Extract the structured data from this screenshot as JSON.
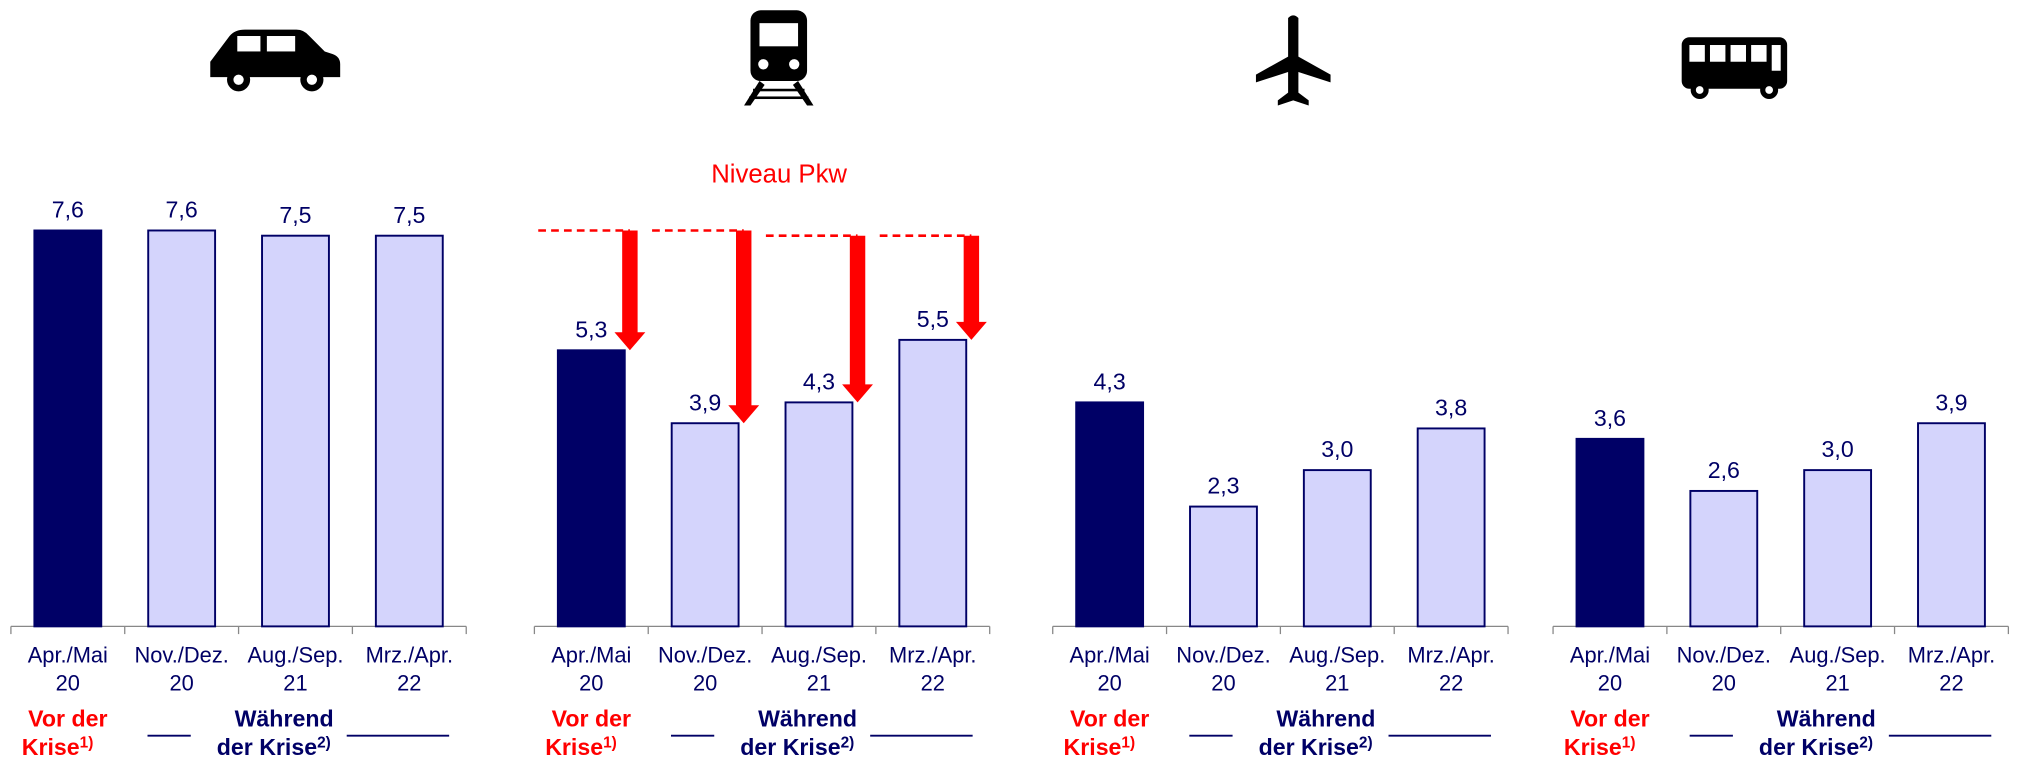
{
  "chart_data": [
    {
      "type": "bar",
      "categories": [
        "Apr./Mai 20",
        "Nov./Dez. 20",
        "Aug./Sep. 21",
        "Mrz./Apr. 22"
      ],
      "values": [
        7.6,
        7.6,
        7.5,
        7.5
      ],
      "value_labels": [
        "7,6",
        "7,6",
        "7,5",
        "7,5"
      ],
      "colors": [
        "#000066",
        "#d4d4fc",
        "#d4d4fc",
        "#d4d4fc"
      ],
      "ylim": [
        0,
        8
      ]
    },
    {
      "type": "bar",
      "categories": [
        "Apr./Mai 20",
        "Nov./Dez. 20",
        "Aug./Sep. 21",
        "Mrz./Apr. 22"
      ],
      "values": [
        5.3,
        3.9,
        4.3,
        5.5
      ],
      "value_labels": [
        "5,3",
        "3,9",
        "4,3",
        "5,5"
      ],
      "colors": [
        "#000066",
        "#d4d4fc",
        "#d4d4fc",
        "#d4d4fc"
      ],
      "ylim": [
        0,
        8
      ],
      "annotation": "Niveau Pkw",
      "reference_color": "#ff0000"
    },
    {
      "type": "bar",
      "categories": [
        "Apr./Mai 20",
        "Nov./Dez. 20",
        "Aug./Sep. 21",
        "Mrz./Apr. 22"
      ],
      "values": [
        4.3,
        2.3,
        3.0,
        3.8
      ],
      "value_labels": [
        "4,3",
        "2,3",
        "3,0",
        "3,8"
      ],
      "colors": [
        "#000066",
        "#d4d4fc",
        "#d4d4fc",
        "#d4d4fc"
      ],
      "ylim": [
        0,
        8
      ]
    },
    {
      "type": "bar",
      "categories": [
        "Apr./Mai 20",
        "Nov./Dez. 20",
        "Aug./Sep. 21",
        "Mrz./Apr. 22"
      ],
      "values": [
        3.6,
        2.6,
        3.0,
        3.9
      ],
      "value_labels": [
        "3,6",
        "2,6",
        "3,0",
        "3,9"
      ],
      "colors": [
        "#000066",
        "#d4d4fc",
        "#d4d4fc",
        "#d4d4fc"
      ],
      "ylim": [
        0,
        8
      ]
    }
  ],
  "groups": [
    {
      "line1": "Vor der",
      "line2": "Krise",
      "note": "1)",
      "color": "#ff0000"
    },
    {
      "line1": "Während",
      "line2": "der Krise",
      "note": "2)",
      "color": "#000066"
    }
  ]
}
